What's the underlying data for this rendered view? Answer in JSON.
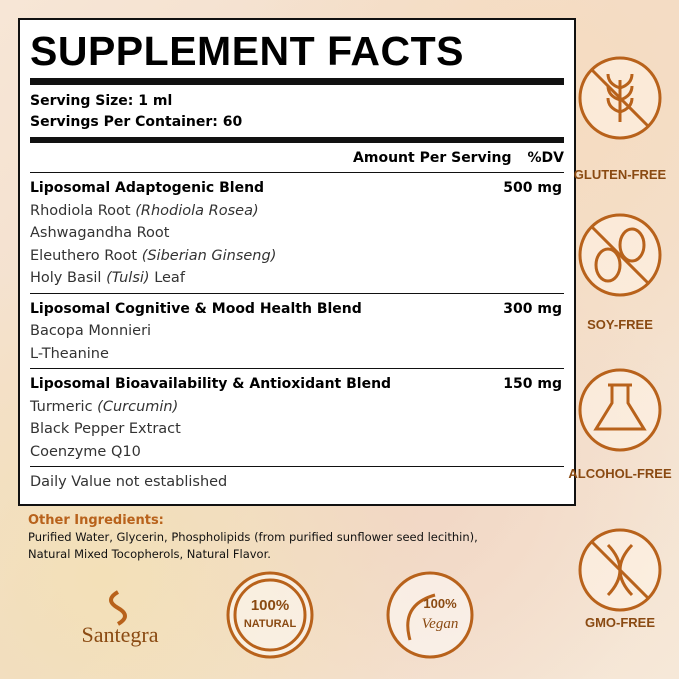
{
  "facts": {
    "title": "SUPPLEMENT FACTS",
    "serving_size": "Serving Size: 1 ml",
    "servings_per_container": "Servings Per Container: 60",
    "amount_header": "Amount Per Serving",
    "dv_header": "%DV",
    "blends": [
      {
        "name": "Liposomal Adaptogenic Blend",
        "amount": "500 mg",
        "items": [
          {
            "name": "Rhodiola Root",
            "note": "(Rhodiola Rosea)"
          },
          {
            "name": "Ashwagandha Root"
          },
          {
            "name": "Eleuthero Root",
            "note": "(Siberian Ginseng)"
          },
          {
            "name": "Holy Basil",
            "note": "(Tulsi)",
            "suffix": "Leaf"
          }
        ]
      },
      {
        "name": "Liposomal Cognitive & Mood Health Blend",
        "amount": "300 mg",
        "items": [
          {
            "name": "Bacopa Monnieri"
          },
          {
            "name": "L-Theanine"
          }
        ]
      },
      {
        "name": "Liposomal Bioavailability &  Antioxidant Blend",
        "amount": "150 mg",
        "items": [
          {
            "name": "Turmeric",
            "note": "(Curcumin)"
          },
          {
            "name": "Black Pepper Extract"
          },
          {
            "name": "Coenzyme Q10"
          }
        ]
      }
    ],
    "footnote": "Daily Value not established"
  },
  "other_ingredients": {
    "heading": "Other Ingredients:",
    "lines": [
      "Purified Water, Glycerin, Phospholipids (from purified sunflower seed lecithin),",
      "Natural Mixed Tocopherols, Natural Flavor."
    ]
  },
  "badges": [
    "GLUTEN-FREE",
    "SOY-FREE",
    "ALCOHOL-FREE",
    "GMO-FREE"
  ],
  "logos": {
    "brand": "Santegra",
    "natural_pct": "100%",
    "natural": "NATURAL",
    "vegan_pct": "100%",
    "vegan": "Vegan"
  }
}
